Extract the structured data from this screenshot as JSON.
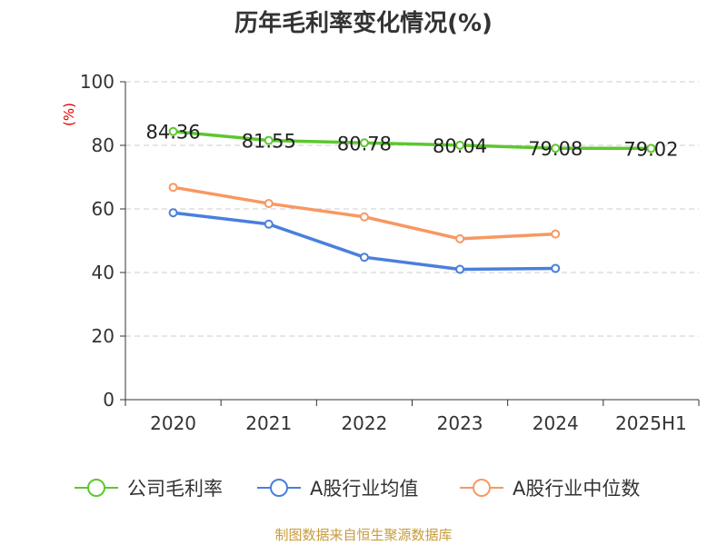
{
  "chart_data": {
    "type": "line",
    "title": "历年毛利率变化情况(%)",
    "ylabel": "(%)",
    "xlabel": "",
    "categories": [
      "2020",
      "2021",
      "2022",
      "2023",
      "2024",
      "2025H1"
    ],
    "ylim": [
      0,
      100
    ],
    "yticks": [
      0,
      20,
      40,
      60,
      80,
      100
    ],
    "grid": true,
    "legend_position": "bottom",
    "series": [
      {
        "name": "公司毛利率",
        "color": "#5cc72f",
        "values": [
          84.36,
          81.55,
          80.78,
          80.04,
          79.08,
          79.02
        ],
        "data_labels": [
          "84.36",
          "81.55",
          "80.78",
          "80.04",
          "79.08",
          "79.02"
        ]
      },
      {
        "name": "A股行业均值",
        "color": "#4a7fdc",
        "values": [
          58.8,
          55.2,
          44.8,
          41.0,
          41.3,
          null
        ]
      },
      {
        "name": "A股行业中位数",
        "color": "#f79862",
        "values": [
          66.8,
          61.7,
          57.5,
          50.6,
          52.1,
          null
        ]
      }
    ],
    "footer": "制图数据来自恒生聚源数据库"
  }
}
